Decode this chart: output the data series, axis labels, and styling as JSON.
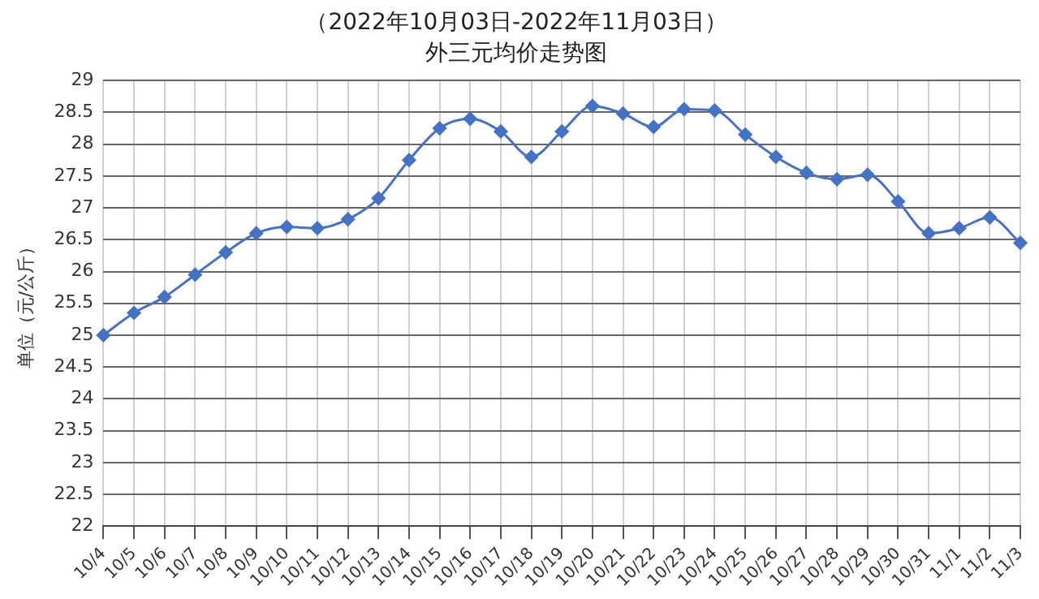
{
  "chart_data": {
    "type": "line",
    "title": "（2022年10月03日-2022年11月03日）",
    "subtitle": "外三元均价走势图",
    "ylabel": "单位（元/公斤）",
    "categories": [
      "10/4",
      "10/5",
      "10/6",
      "10/7",
      "10/8",
      "10/9",
      "10/10",
      "10/11",
      "10/12",
      "10/13",
      "10/14",
      "10/15",
      "10/16",
      "10/17",
      "10/18",
      "10/19",
      "10/20",
      "10/21",
      "10/22",
      "10/23",
      "10/24",
      "10/25",
      "10/26",
      "10/27",
      "10/28",
      "10/29",
      "10/30",
      "10/31",
      "11/1",
      "11/2",
      "11/3"
    ],
    "series": [
      {
        "color": "#4472c4",
        "values": [
          25.0,
          25.35,
          25.6,
          25.95,
          26.3,
          26.6,
          26.7,
          26.68,
          26.82,
          27.15,
          27.75,
          28.25,
          28.4,
          28.2,
          27.8,
          28.2,
          28.6,
          28.48,
          28.27,
          28.55,
          28.53,
          28.15,
          27.8,
          27.55,
          27.45,
          27.52,
          27.1,
          26.6,
          26.68,
          26.85,
          26.45
        ]
      }
    ],
    "ylim": [
      22,
      29
    ],
    "yticks": [
      22,
      22.5,
      23,
      23.5,
      24,
      24.5,
      25,
      25.5,
      26,
      26.5,
      27,
      27.5,
      28,
      28.5,
      29
    ],
    "grid": true,
    "legend": false,
    "marker": "diamond",
    "line_style": "solid"
  }
}
